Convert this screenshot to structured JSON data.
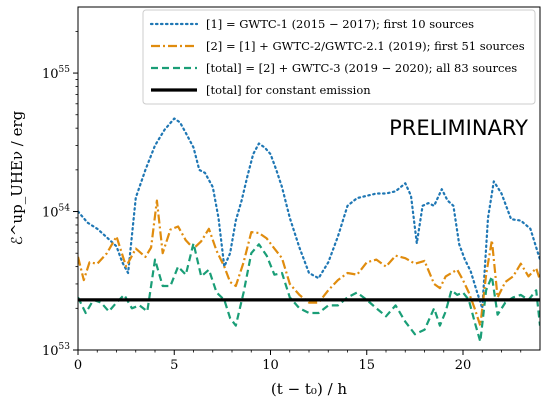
{
  "chart_data": {
    "type": "line",
    "title": "",
    "xlabel": "(t − t₀) / h",
    "ylabel": "ℰ^up_UHEν / erg",
    "xlim": [
      0,
      24
    ],
    "xticks": [
      0,
      5,
      10,
      15,
      20
    ],
    "yscale": "log",
    "ylim": [
      1e+53,
      3e+55
    ],
    "yticks": [
      {
        "value": 1e+53,
        "base": "10",
        "exp": "53"
      },
      {
        "value": 1e+54,
        "base": "10",
        "exp": "54"
      },
      {
        "value": 1e+55,
        "base": "10",
        "exp": "55"
      }
    ],
    "annotation": "PRELIMINARY",
    "legend_position": "top-right",
    "series": [
      {
        "name": "[1] = GWTC-1 (2015 − 2017); first 10 sources",
        "color": "#1f77b4",
        "style": "dotted",
        "x": [
          0,
          0.5,
          1,
          1.5,
          2,
          2.3,
          2.6,
          3,
          3.5,
          4,
          4.5,
          5,
          5.3,
          5.6,
          6,
          6.3,
          6.6,
          7,
          7.3,
          7.6,
          7.9,
          8.2,
          8.5,
          8.8,
          9.1,
          9.4,
          9.7,
          10,
          10.3,
          10.6,
          11,
          11.5,
          12,
          12.5,
          13,
          13.5,
          14,
          14.5,
          15,
          15.5,
          16,
          16.5,
          17,
          17.3,
          17.6,
          17.9,
          18.2,
          18.5,
          18.9,
          19.2,
          19.5,
          19.8,
          20.1,
          20.4,
          20.7,
          21,
          21.3,
          21.6,
          22,
          22.5,
          23,
          23.5,
          24
        ],
        "values": [
          1e+54,
          8.3e+53,
          7.5e+53,
          6.5e+53,
          5.6e+53,
          4.3e+53,
          3.6e+53,
          1.26e+54,
          2e+54,
          3e+54,
          3.9e+54,
          4.7e+54,
          4.4e+54,
          3.7e+54,
          2.9e+54,
          2e+54,
          1.9e+54,
          1.5e+54,
          9e+53,
          4e+53,
          5e+53,
          8.6e+53,
          1.2e+54,
          1.8e+54,
          2.6e+54,
          3.1e+54,
          2.9e+54,
          2.6e+54,
          2e+54,
          1.5e+54,
          9e+53,
          5.5e+53,
          3.6e+53,
          3.3e+53,
          4.3e+53,
          6.6e+53,
          1.1e+54,
          1.25e+54,
          1.3e+54,
          1.35e+54,
          1.35e+54,
          1.4e+54,
          1.6e+54,
          1.3e+54,
          5.9e+53,
          1.1e+54,
          1.15e+54,
          1.1e+54,
          1.45e+54,
          1.2e+54,
          1.1e+54,
          5.8e+53,
          4.5e+53,
          3.7e+53,
          2.7e+53,
          2e+53,
          9e+53,
          1.65e+54,
          1.35e+54,
          8.8e+53,
          8.6e+53,
          7.5e+53,
          4.5e+53
        ]
      },
      {
        "name": "[2] = [1] + GWTC-2/GWTC-2.1 (2019); first 51 sources",
        "color": "#e08c0e",
        "style": "dashdot",
        "x": [
          0,
          0.3,
          0.6,
          1,
          1.5,
          2,
          2.5,
          3,
          3.5,
          3.8,
          4.1,
          4.4,
          4.8,
          5.2,
          5.6,
          6,
          6.4,
          6.8,
          7.2,
          7.6,
          7.9,
          8.2,
          8.6,
          9,
          9.4,
          9.8,
          10.2,
          10.6,
          11,
          11.5,
          12,
          12.5,
          13,
          13.5,
          14,
          14.5,
          15,
          15.5,
          16,
          16.5,
          17,
          17.5,
          18,
          18.5,
          18.8,
          19.1,
          19.4,
          19.7,
          20,
          20.3,
          20.6,
          20.9,
          21.2,
          21.5,
          21.8,
          22.2,
          22.6,
          23,
          23.4,
          23.8,
          24
        ],
        "values": [
          4.7e+53,
          3.2e+53,
          4.3e+53,
          4.2e+53,
          5e+53,
          6.6e+53,
          4e+53,
          5.4e+53,
          4.7e+53,
          5.5e+53,
          1.2e+54,
          5e+53,
          7.4e+53,
          7.8e+53,
          6.2e+53,
          5.4e+53,
          6.1e+53,
          7.5e+53,
          5.2e+53,
          4e+53,
          3.1e+53,
          2.9e+53,
          4.3e+53,
          7.1e+53,
          7e+53,
          6.4e+53,
          5.4e+53,
          4.6e+53,
          3e+53,
          2.5e+53,
          2.2e+53,
          2.2e+53,
          2.7e+53,
          3.2e+53,
          3.6e+53,
          3.5e+53,
          4.3e+53,
          4.5e+53,
          4e+53,
          4.8e+53,
          4.6e+53,
          4.2e+53,
          4.4e+53,
          3e+53,
          2.8e+53,
          3.4e+53,
          3.6e+53,
          3.8e+53,
          3.2e+53,
          2.6e+53,
          2e+53,
          1.5e+53,
          3.5e+53,
          6.2e+53,
          2.4e+53,
          3.1e+53,
          3.4e+53,
          4.2e+53,
          3.4e+53,
          3.9e+53,
          3.2e+53
        ]
      },
      {
        "name": "[total] = [2] + GWTC-3 (2019 − 2020); all 83 sources",
        "color": "#1a9e77",
        "style": "dashed",
        "x": [
          0,
          0.4,
          0.8,
          1.2,
          1.6,
          2,
          2.4,
          2.8,
          3.2,
          3.6,
          4,
          4.4,
          4.8,
          5.2,
          5.6,
          6,
          6.4,
          6.8,
          7.2,
          7.6,
          7.9,
          8.2,
          8.6,
          9,
          9.4,
          9.8,
          10.2,
          10.6,
          11,
          11.5,
          12,
          12.5,
          13,
          13.5,
          14,
          14.5,
          15,
          15.5,
          16,
          16.5,
          17,
          17.5,
          18,
          18.5,
          18.8,
          19.1,
          19.4,
          19.7,
          20,
          20.3,
          20.6,
          20.9,
          21.2,
          21.5,
          21.8,
          22.2,
          22.6,
          23,
          23.4,
          23.8,
          24
        ],
        "values": [
          2.4e+53,
          1.85e+53,
          2.3e+53,
          2.2e+53,
          1.9e+53,
          2.2e+53,
          2.5e+53,
          2e+53,
          2.1e+53,
          1.9e+53,
          4.5e+53,
          2.9e+53,
          2.9e+53,
          4e+53,
          3.5e+53,
          5.9e+53,
          3.4e+53,
          3.8e+53,
          2.6e+53,
          2.3e+53,
          1.7e+53,
          1.5e+53,
          2.6e+53,
          5e+53,
          5.8e+53,
          4.8e+53,
          3.5e+53,
          3.6e+53,
          2.4e+53,
          2e+53,
          1.85e+53,
          1.85e+53,
          2.1e+53,
          2.1e+53,
          2.4e+53,
          2.6e+53,
          2.3e+53,
          2e+53,
          1.75e+53,
          2.1e+53,
          1.6e+53,
          1.3e+53,
          1.4e+53,
          2e+53,
          1.5e+53,
          1.9e+53,
          2.7e+53,
          2.5e+53,
          2.6e+53,
          2.3e+53,
          1.6e+53,
          1.15e+53,
          2.7e+53,
          3.4e+53,
          1.8e+53,
          2.2e+53,
          2.4e+53,
          2.5e+53,
          2.3e+53,
          2.7e+53,
          1.5e+53
        ]
      },
      {
        "name": "[total] for constant emission",
        "color": "#000000",
        "style": "solid",
        "x": [
          0,
          24
        ],
        "values": [
          2.3e+53,
          2.3e+53
        ]
      }
    ]
  }
}
